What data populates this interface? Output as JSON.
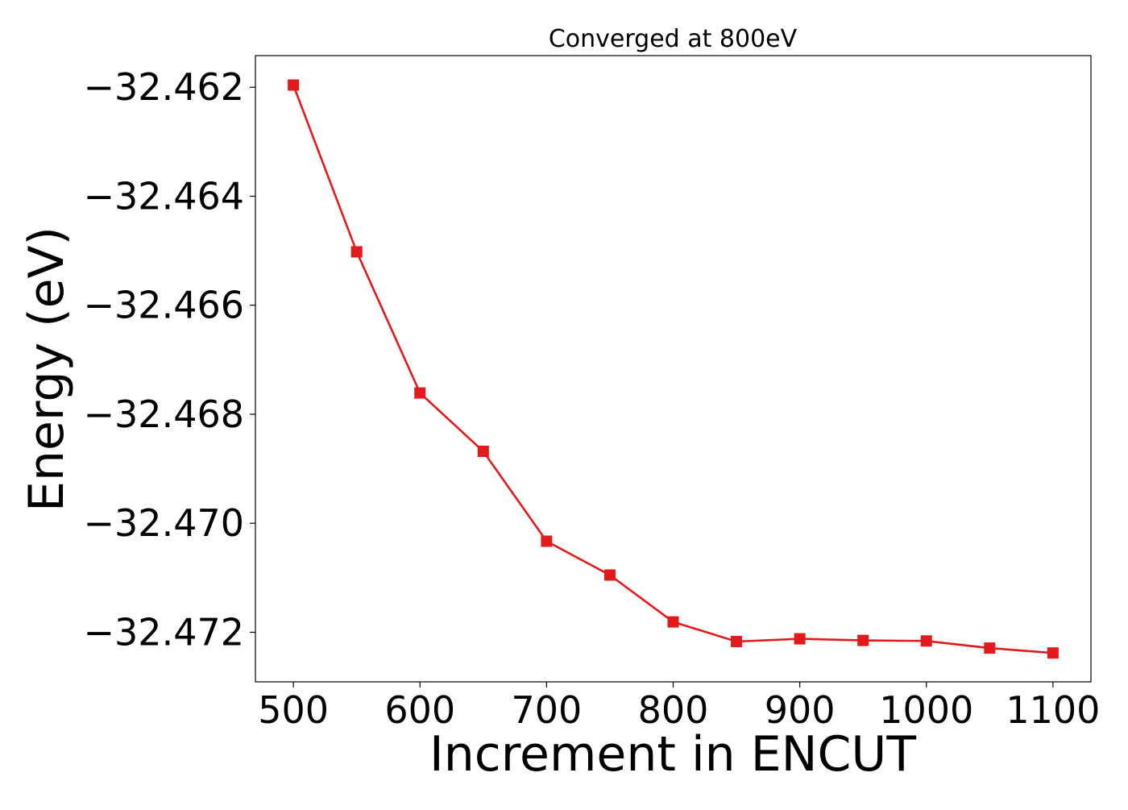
{
  "chart_data": {
    "type": "line",
    "title": "Converged at 800eV",
    "xlabel": "Increment in ENCUT",
    "ylabel": "Energy (eV)",
    "x": [
      500,
      550,
      600,
      650,
      700,
      750,
      800,
      850,
      900,
      950,
      1000,
      1050,
      1100
    ],
    "series": [
      {
        "values": [
          -32.46196,
          -32.46502,
          -32.46761,
          -32.46868,
          -32.47033,
          -32.47095,
          -32.47181,
          -32.47217,
          -32.47212,
          -32.47215,
          -32.47216,
          -32.47229,
          -32.47238
        ],
        "color": "#e31a1c",
        "marker": "square"
      }
    ],
    "xlim": [
      470,
      1130
    ],
    "ylim": [
      -32.47291,
      -32.46142
    ],
    "xticks": [
      500,
      600,
      700,
      800,
      900,
      1000,
      1100
    ],
    "xtick_labels": [
      "500",
      "600",
      "700",
      "800",
      "900",
      "1000",
      "1100"
    ],
    "yticks": [
      -32.462,
      -32.464,
      -32.466,
      -32.468,
      -32.47,
      -32.472
    ],
    "ytick_labels": [
      "−32.462",
      "−32.464",
      "−32.466",
      "−32.468",
      "−32.470",
      "−32.472"
    ],
    "grid": false,
    "legend": "none"
  }
}
